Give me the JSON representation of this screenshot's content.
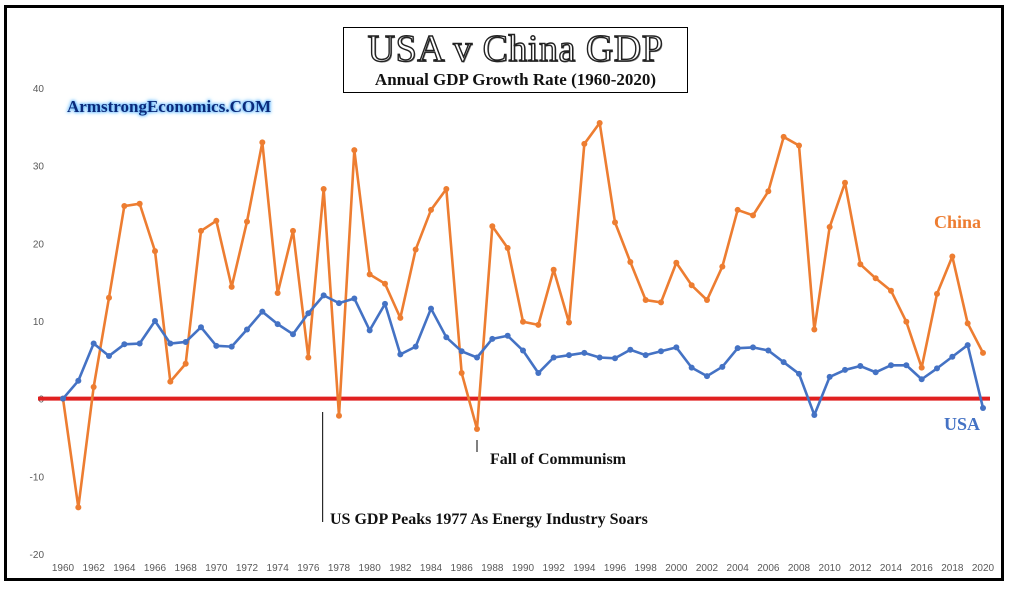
{
  "title": "USA v China GDP",
  "subtitle": "Annual GDP Growth Rate (1960-2020)",
  "brand": "ArmstrongEconomics.COM",
  "annotations": {
    "fall_of_communism": "Fall of Communism",
    "us_peak": "US GDP Peaks 1977 As Energy Industry Soars"
  },
  "colors": {
    "china": "#ed7d31",
    "usa": "#4472c4",
    "zero_line": "#e02020",
    "brand": "#0b2a7a"
  },
  "chart_data": {
    "type": "line",
    "x": [
      1960,
      1961,
      1962,
      1963,
      1964,
      1965,
      1966,
      1967,
      1968,
      1969,
      1970,
      1971,
      1972,
      1973,
      1974,
      1975,
      1976,
      1977,
      1978,
      1979,
      1980,
      1981,
      1982,
      1983,
      1984,
      1985,
      1986,
      1987,
      1988,
      1989,
      1990,
      1991,
      1992,
      1993,
      1994,
      1995,
      1996,
      1997,
      1998,
      1999,
      2000,
      2001,
      2002,
      2003,
      2004,
      2005,
      2006,
      2007,
      2008,
      2009,
      2010,
      2011,
      2012,
      2013,
      2014,
      2015,
      2016,
      2017,
      2018,
      2019,
      2020
    ],
    "series": [
      {
        "name": "China",
        "color": "#ed7d31",
        "values": [
          0,
          -14,
          1.5,
          13,
          24.8,
          25.1,
          19,
          2.2,
          4.5,
          21.6,
          22.9,
          14.4,
          22.8,
          33,
          13.6,
          21.6,
          5.3,
          27,
          -2.2,
          32,
          16,
          14.8,
          10.4,
          19.2,
          24.3,
          27,
          3.3,
          -3.9,
          22.2,
          19.4,
          9.9,
          9.5,
          16.6,
          9.8,
          32.8,
          35.5,
          22.7,
          17.6,
          12.7,
          12.4,
          17.5,
          14.6,
          12.7,
          17,
          24.3,
          23.6,
          26.7,
          33.7,
          32.6,
          8.9,
          22.1,
          27.8,
          17.3,
          15.5,
          13.9,
          9.9,
          4,
          13.5,
          18.3,
          9.7,
          5.9
        ]
      },
      {
        "name": "USA",
        "color": "#4472c4",
        "values": [
          0,
          2.3,
          7.1,
          5.5,
          7,
          7.1,
          10,
          7.1,
          7.3,
          9.2,
          6.8,
          6.7,
          8.9,
          11.2,
          9.6,
          8.3,
          11,
          13.3,
          12.3,
          12.9,
          8.8,
          12.2,
          5.7,
          6.7,
          11.6,
          7.9,
          6.1,
          5.3,
          7.7,
          8.1,
          6.2,
          3.3,
          5.3,
          5.6,
          5.9,
          5.3,
          5.2,
          6.3,
          5.6,
          6.1,
          6.6,
          4,
          2.9,
          4.1,
          6.5,
          6.6,
          6.2,
          4.7,
          3.2,
          -2.1,
          2.8,
          3.7,
          4.2,
          3.4,
          4.3,
          4.3,
          2.5,
          3.9,
          5.4,
          6.9,
          -1.2
        ]
      }
    ],
    "x_ticks": [
      "1960",
      "1962",
      "1964",
      "1966",
      "1968",
      "1970",
      "1972",
      "1974",
      "1976",
      "1978",
      "1980",
      "1982",
      "1984",
      "1986",
      "1988",
      "1990",
      "1992",
      "1994",
      "1996",
      "1998",
      "2000",
      "2002",
      "2004",
      "2006",
      "2008",
      "2010",
      "2012",
      "2014",
      "2016",
      "2018",
      "2020"
    ],
    "y_ticks": [
      "-20",
      "-10",
      "0",
      "10",
      "20",
      "30",
      "40"
    ],
    "xlim": [
      1960,
      2020
    ],
    "ylim": [
      -20,
      40
    ],
    "grid": false,
    "legend": "inline-labels-right"
  }
}
